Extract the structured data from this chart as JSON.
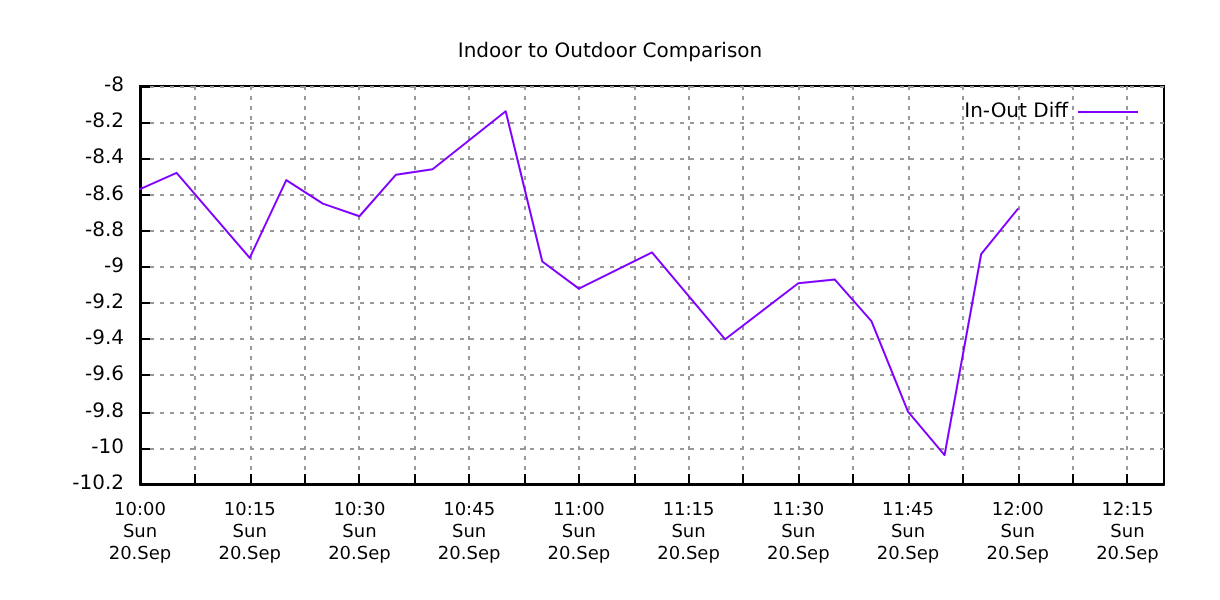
{
  "chart_data": {
    "type": "line",
    "title": "Indoor to Outdoor Comparison",
    "x": [
      "--09-20T10:00",
      "--09-20T10:05",
      "--09-20T10:15",
      "--09-20T10:20",
      "--09-20T10:25",
      "--09-20T10:30",
      "--09-20T10:35",
      "--09-20T10:40",
      "--09-20T10:50",
      "--09-20T10:55",
      "--09-20T11:00",
      "--09-20T11:10",
      "--09-20T11:20",
      "--09-20T11:30",
      "--09-20T11:35",
      "--09-20T11:40",
      "--09-20T11:45",
      "--09-20T11:50",
      "--09-20T11:55",
      "--09-20T12:00"
    ],
    "series": [
      {
        "name": "In-Out Diff",
        "color": "#8000ff",
        "values": [
          -8.57,
          -8.48,
          -8.95,
          -8.52,
          -8.65,
          -8.72,
          -8.49,
          -8.46,
          -8.14,
          -8.97,
          -9.12,
          -8.92,
          -9.4,
          -9.09,
          -9.07,
          -9.3,
          -9.8,
          -10.04,
          -8.93,
          -8.68
        ]
      }
    ],
    "xlim": [
      "--09-20T10:00",
      "--09-20T12:20"
    ],
    "xticks": [
      {
        "value": "--09-20T10:00",
        "label": "10:00\nSun\n20.Sep"
      },
      {
        "value": "--09-20T10:07:30",
        "label": null
      },
      {
        "value": "--09-20T10:15",
        "label": "10:15\nSun\n20.Sep"
      },
      {
        "value": "--09-20T10:22:30",
        "label": null
      },
      {
        "value": "--09-20T10:30",
        "label": "10:30\nSun\n20.Sep"
      },
      {
        "value": "--09-20T10:37:30",
        "label": null
      },
      {
        "value": "--09-20T10:45",
        "label": "10:45\nSun\n20.Sep"
      },
      {
        "value": "--09-20T10:52:30",
        "label": null
      },
      {
        "value": "--09-20T11:00",
        "label": "11:00\nSun\n20.Sep"
      },
      {
        "value": "--09-20T11:07:30",
        "label": null
      },
      {
        "value": "--09-20T11:15",
        "label": "11:15\nSun\n20.Sep"
      },
      {
        "value": "--09-20T11:22:30",
        "label": null
      },
      {
        "value": "--09-20T11:30",
        "label": "11:30\nSun\n20.Sep"
      },
      {
        "value": "--09-20T11:37:30",
        "label": null
      },
      {
        "value": "--09-20T11:45",
        "label": "11:45\nSun\n20.Sep"
      },
      {
        "value": "--09-20T11:52:30",
        "label": null
      },
      {
        "value": "--09-20T12:00",
        "label": "12:00\nSun\n20.Sep"
      },
      {
        "value": "--09-20T12:07:30",
        "label": null
      },
      {
        "value": "--09-20T12:15",
        "label": "12:15\nSun\n20.Sep"
      }
    ],
    "ylim": [
      -10.2,
      -8
    ],
    "yticks": [
      -10.2,
      -10,
      -9.8,
      -9.6,
      -9.4,
      -9.2,
      -9,
      -8.8,
      -8.6,
      -8.4,
      -8.2,
      -8
    ],
    "grid": true,
    "legend": "top right",
    "marker": "none",
    "line_style": "solid"
  }
}
